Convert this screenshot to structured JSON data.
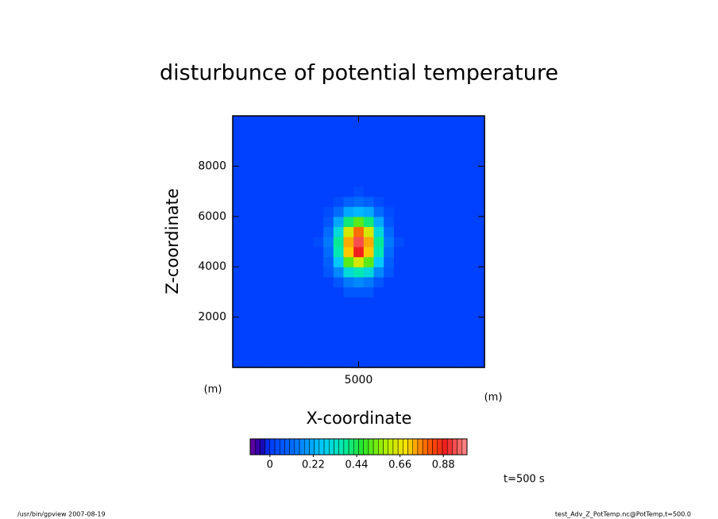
{
  "chart_data": {
    "type": "contour",
    "title": "disturbunce of potential temperature",
    "x_label": "X-coordinate",
    "y_label": "Z-coordinate",
    "x_unit": "(m)",
    "y_unit": "(m)",
    "xlim": [
      0,
      10000
    ],
    "ylim": [
      0,
      10000
    ],
    "xticks": [
      5000
    ],
    "yticks": [
      2000,
      4000,
      6000,
      8000
    ],
    "x": [
      200,
      600,
      1000,
      1400,
      1800,
      2200,
      2600,
      3000,
      3400,
      3800,
      4200,
      4600,
      5000,
      5400,
      5800,
      6200,
      6600,
      7000,
      7400,
      7800,
      8200,
      8600,
      9000,
      9400,
      9800
    ],
    "y": [
      200,
      600,
      1000,
      1400,
      1800,
      2200,
      2600,
      3000,
      3400,
      3800,
      4200,
      4600,
      5000,
      5400,
      5800,
      6200,
      6600,
      7000,
      7400,
      7800,
      8200,
      8600,
      9000,
      9400,
      9800
    ],
    "z": [
      [
        0,
        0,
        0,
        0,
        0,
        0,
        0,
        0,
        0,
        0,
        0,
        0,
        0,
        0,
        0,
        0,
        0,
        0,
        0,
        0,
        0,
        0,
        0,
        0,
        0
      ],
      [
        0,
        0,
        0,
        0,
        0,
        0,
        0,
        0,
        0,
        0,
        0,
        0,
        0,
        0,
        0,
        0,
        0,
        0,
        0,
        0,
        0,
        0,
        0,
        0,
        0
      ],
      [
        0,
        0,
        0,
        0,
        0,
        0,
        0,
        0,
        0,
        0,
        0,
        0,
        0,
        0,
        0,
        0,
        0,
        0,
        0,
        0,
        0,
        0,
        0,
        0,
        0
      ],
      [
        0,
        0,
        0,
        0,
        0,
        0,
        0,
        0,
        0,
        0,
        0,
        0,
        0,
        0,
        0,
        0,
        0,
        0,
        0,
        0,
        0,
        0,
        0,
        0,
        0
      ],
      [
        0,
        0,
        0,
        0,
        0,
        0,
        0,
        0,
        0,
        0,
        0,
        0,
        0,
        0,
        0,
        0,
        0,
        0,
        0,
        0,
        0,
        0,
        0,
        0,
        0
      ],
      [
        0,
        0,
        0,
        0,
        0,
        0,
        0,
        0,
        0,
        0,
        0,
        0,
        0,
        0,
        0,
        0,
        0,
        0,
        0,
        0,
        0,
        0,
        0,
        0,
        0
      ],
      [
        0,
        0,
        0,
        0,
        0,
        0,
        0,
        0,
        0,
        0,
        0,
        0,
        0,
        0,
        0,
        0,
        0,
        0,
        0,
        0,
        0,
        0,
        0,
        0,
        0
      ],
      [
        0,
        0,
        0,
        0,
        0,
        0,
        0,
        0,
        0,
        0.01,
        0.02,
        0.05,
        0.06,
        0.05,
        0.02,
        0.01,
        0,
        0,
        0,
        0,
        0,
        0,
        0,
        0,
        0
      ],
      [
        0,
        0,
        0,
        0,
        0,
        0,
        0,
        0,
        0,
        0.02,
        0.07,
        0.13,
        0.16,
        0.13,
        0.07,
        0.02,
        0,
        0,
        0,
        0,
        0,
        0,
        0,
        0,
        0
      ],
      [
        0,
        0,
        0,
        0,
        0,
        0,
        0,
        0,
        0.01,
        0.05,
        0.15,
        0.3,
        0.37,
        0.3,
        0.15,
        0.05,
        0.01,
        0,
        0,
        0,
        0,
        0,
        0,
        0,
        0
      ],
      [
        0,
        0,
        0,
        0,
        0,
        0,
        0,
        0,
        0.02,
        0.09,
        0.27,
        0.52,
        0.65,
        0.52,
        0.27,
        0.09,
        0.02,
        0,
        0,
        0,
        0,
        0,
        0,
        0,
        0
      ],
      [
        0,
        0,
        0,
        0,
        0,
        0,
        0,
        0,
        0.02,
        0.12,
        0.36,
        0.71,
        0.89,
        0.71,
        0.36,
        0.12,
        0.02,
        0,
        0,
        0,
        0,
        0,
        0,
        0,
        0
      ],
      [
        0,
        0,
        0,
        0,
        0,
        0,
        0,
        0,
        0.03,
        0.13,
        0.39,
        0.75,
        0.94,
        0.75,
        0.39,
        0.13,
        0.03,
        0,
        0,
        0,
        0,
        0,
        0,
        0,
        0
      ],
      [
        0,
        0,
        0,
        0,
        0,
        0,
        0,
        0,
        0.02,
        0.11,
        0.32,
        0.63,
        0.78,
        0.63,
        0.32,
        0.11,
        0.02,
        0,
        0,
        0,
        0,
        0,
        0,
        0,
        0
      ],
      [
        0,
        0,
        0,
        0,
        0,
        0,
        0,
        0,
        0.01,
        0.07,
        0.21,
        0.4,
        0.5,
        0.4,
        0.21,
        0.07,
        0.01,
        0,
        0,
        0,
        0,
        0,
        0,
        0,
        0
      ],
      [
        0,
        0,
        0,
        0,
        0,
        0,
        0,
        0,
        0.01,
        0.03,
        0.1,
        0.2,
        0.25,
        0.2,
        0.1,
        0.03,
        0.01,
        0,
        0,
        0,
        0,
        0,
        0,
        0,
        0
      ],
      [
        0,
        0,
        0,
        0,
        0,
        0,
        0,
        0,
        0,
        0.01,
        0.04,
        0.08,
        0.1,
        0.08,
        0.04,
        0.01,
        0,
        0,
        0,
        0,
        0,
        0,
        0,
        0,
        0
      ],
      [
        0,
        0,
        0,
        0,
        0,
        0,
        0,
        0,
        0,
        0,
        0.01,
        0.02,
        0.03,
        0.02,
        0.01,
        0,
        0,
        0,
        0,
        0,
        0,
        0,
        0,
        0,
        0
      ],
      [
        0,
        0,
        0,
        0,
        0,
        0,
        0,
        0,
        0,
        0,
        0,
        0,
        0,
        0,
        0,
        0,
        0,
        0,
        0,
        0,
        0,
        0,
        0,
        0,
        0
      ],
      [
        0,
        0,
        0,
        0,
        0,
        0,
        0,
        0,
        0,
        0,
        0,
        0,
        0,
        0,
        0,
        0,
        0,
        0,
        0,
        0,
        0,
        0,
        0,
        0,
        0
      ],
      [
        0,
        0,
        0,
        0,
        0,
        0,
        0,
        0,
        0,
        0,
        0,
        0,
        0,
        0,
        0,
        0,
        0,
        0,
        0,
        0,
        0,
        0,
        0,
        0,
        0
      ],
      [
        0,
        0,
        0,
        0,
        0,
        0,
        0,
        0,
        0,
        0,
        0,
        0,
        0,
        0,
        0,
        0,
        0,
        0,
        0,
        0,
        0,
        0,
        0,
        0,
        0
      ],
      [
        0,
        0,
        0,
        0,
        0,
        0,
        0,
        0,
        0,
        0,
        0,
        0,
        0,
        0,
        0,
        0,
        0,
        0,
        0,
        0,
        0,
        0,
        0,
        0,
        0
      ],
      [
        0,
        0,
        0,
        0,
        0,
        0,
        0,
        0,
        0,
        0,
        0,
        0,
        0,
        0,
        0,
        0,
        0,
        0,
        0,
        0,
        0,
        0,
        0,
        0,
        0
      ],
      [
        0,
        0,
        0,
        0,
        0,
        0,
        0,
        0,
        0,
        0,
        0,
        0,
        0,
        0,
        0,
        0,
        0,
        0,
        0,
        0,
        0,
        0,
        0,
        0,
        0
      ]
    ],
    "clim": [
      -0.1,
      1.0
    ],
    "cticks": [
      0,
      0.22,
      0.44,
      0.66,
      0.88
    ],
    "annotation": "t=500 s",
    "footer_left": "/usr/bin/gpview   2007-08-19",
    "footer_right": "test_Adv_Z_PotTemp.nc@PotTemp,t=500.0"
  }
}
